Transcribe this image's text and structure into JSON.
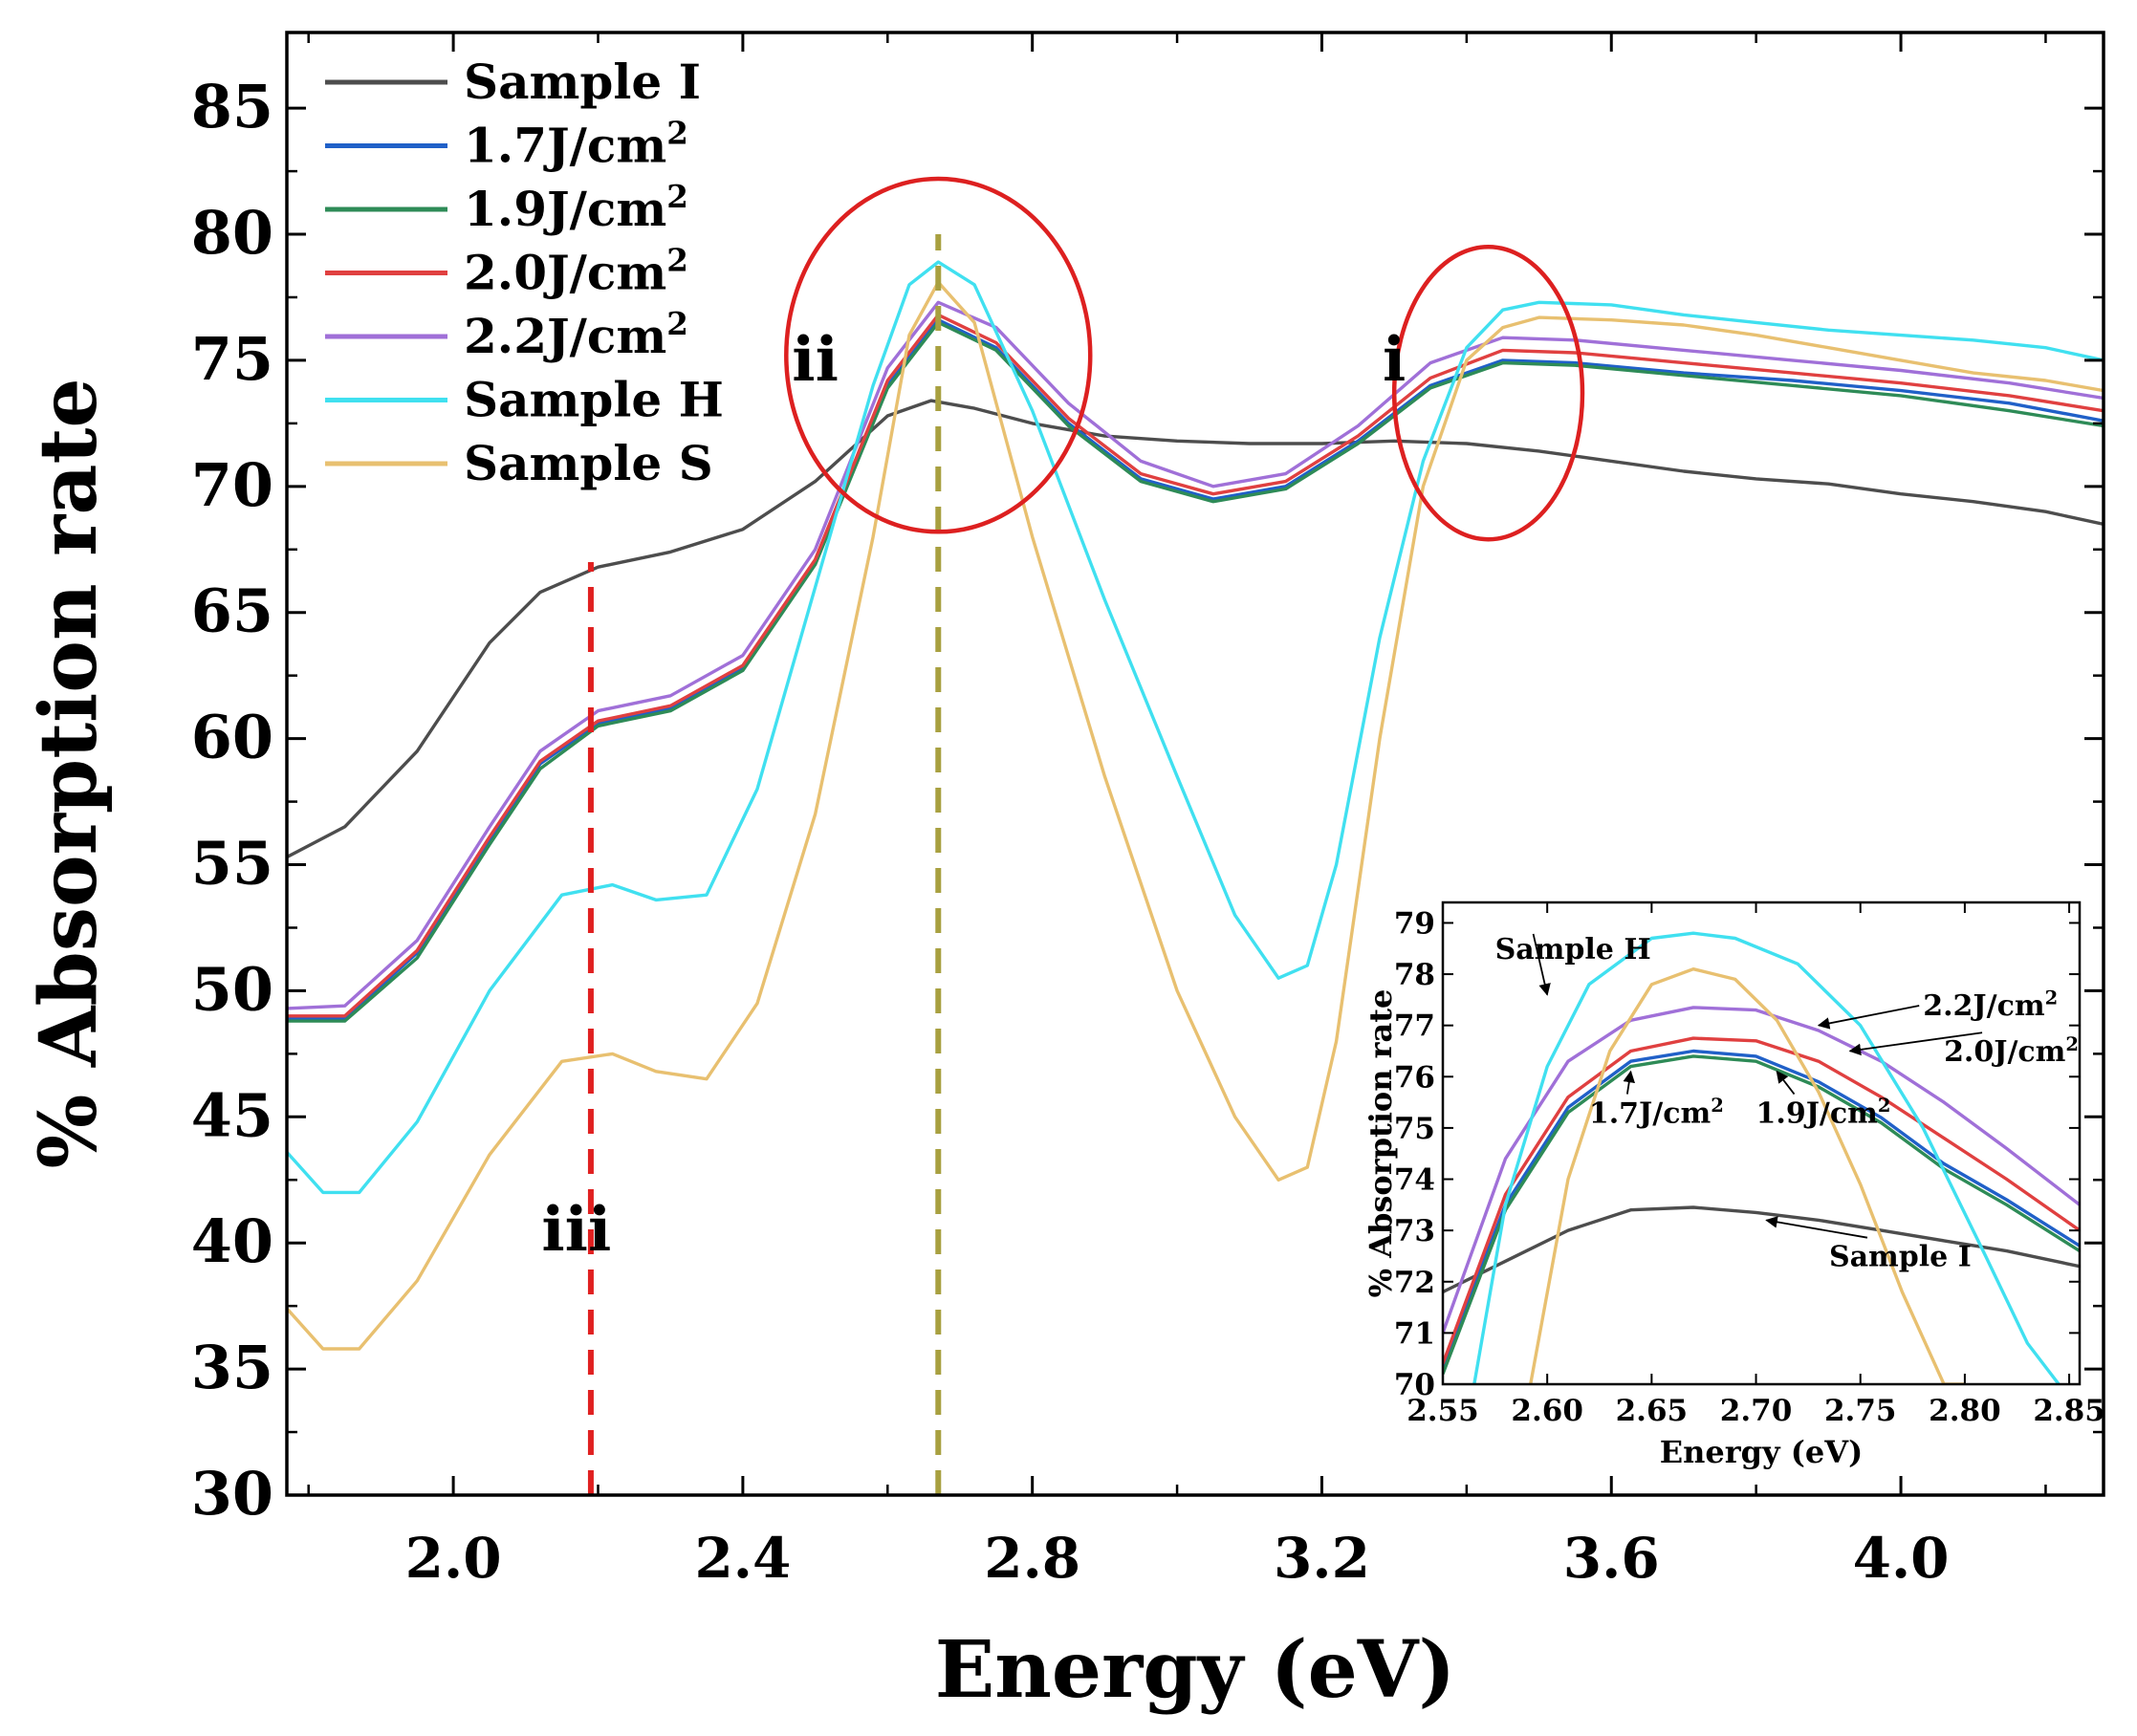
{
  "chart_data": [
    {
      "type": "line",
      "xlabel": "Energy (eV)",
      "ylabel": "% Absorption rate",
      "xlim": [
        1.77,
        4.28
      ],
      "ylim": [
        30,
        88
      ],
      "xticks": [
        2.0,
        2.4,
        2.8,
        3.2,
        3.6,
        4.0
      ],
      "xtick_labels": [
        "2.0",
        "2.4",
        "2.8",
        "3.2",
        "3.6",
        "4.0"
      ],
      "yticks": [
        30,
        35,
        40,
        45,
        50,
        55,
        60,
        65,
        70,
        75,
        80,
        85
      ],
      "ytick_labels": [
        "30",
        "35",
        "40",
        "45",
        "50",
        "55",
        "60",
        "65",
        "70",
        "75",
        "80",
        "85"
      ],
      "legend_position": "top-left",
      "series": [
        {
          "name": "Sample I",
          "color": "#4d4d4d",
          "x": [
            1.77,
            1.85,
            1.95,
            2.05,
            2.12,
            2.2,
            2.3,
            2.4,
            2.5,
            2.6,
            2.66,
            2.72,
            2.8,
            2.9,
            3.0,
            3.1,
            3.2,
            3.3,
            3.4,
            3.5,
            3.6,
            3.7,
            3.8,
            3.9,
            4.0,
            4.1,
            4.2,
            4.28
          ],
          "y": [
            55.3,
            56.5,
            59.5,
            63.8,
            65.8,
            66.8,
            67.4,
            68.3,
            70.2,
            72.8,
            73.4,
            73.1,
            72.5,
            72.0,
            71.8,
            71.7,
            71.7,
            71.8,
            71.7,
            71.4,
            71.0,
            70.6,
            70.3,
            70.1,
            69.7,
            69.4,
            69.0,
            68.5
          ]
        },
        {
          "name": "1.7J/cm",
          "sup": "2",
          "color": "#2060c8",
          "x": [
            1.77,
            1.85,
            1.95,
            2.05,
            2.12,
            2.2,
            2.3,
            2.4,
            2.5,
            2.6,
            2.67,
            2.75,
            2.85,
            2.95,
            3.05,
            3.15,
            3.25,
            3.35,
            3.45,
            3.55,
            3.7,
            3.85,
            4.0,
            4.15,
            4.28
          ],
          "y": [
            48.9,
            48.9,
            51.5,
            56.0,
            59.0,
            60.6,
            61.2,
            62.8,
            67.0,
            74.0,
            76.6,
            75.5,
            72.5,
            70.3,
            69.5,
            70.0,
            71.8,
            74.0,
            75.0,
            74.9,
            74.5,
            74.2,
            73.8,
            73.3,
            72.6
          ]
        },
        {
          "name": "1.9J/cm",
          "sup": "2",
          "color": "#2e8b57",
          "x": [
            1.77,
            1.85,
            1.95,
            2.05,
            2.12,
            2.2,
            2.3,
            2.4,
            2.5,
            2.6,
            2.67,
            2.75,
            2.85,
            2.95,
            3.05,
            3.15,
            3.25,
            3.35,
            3.45,
            3.55,
            3.7,
            3.85,
            4.0,
            4.15,
            4.28
          ],
          "y": [
            48.8,
            48.8,
            51.3,
            55.8,
            58.8,
            60.5,
            61.1,
            62.7,
            66.9,
            73.9,
            76.5,
            75.4,
            72.4,
            70.2,
            69.4,
            69.9,
            71.7,
            73.9,
            74.9,
            74.8,
            74.4,
            74.0,
            73.6,
            73.0,
            72.4
          ]
        },
        {
          "name": "2.0J/cm",
          "sup": "2",
          "color": "#e04040",
          "x": [
            1.77,
            1.85,
            1.95,
            2.05,
            2.12,
            2.2,
            2.3,
            2.4,
            2.5,
            2.6,
            2.67,
            2.75,
            2.85,
            2.95,
            3.05,
            3.15,
            3.25,
            3.35,
            3.45,
            3.55,
            3.7,
            3.85,
            4.0,
            4.15,
            4.28
          ],
          "y": [
            49.0,
            49.0,
            51.6,
            56.1,
            59.1,
            60.7,
            61.3,
            62.9,
            67.1,
            74.2,
            76.8,
            75.7,
            72.7,
            70.5,
            69.7,
            70.2,
            72.0,
            74.3,
            75.4,
            75.3,
            74.9,
            74.5,
            74.1,
            73.6,
            73.0
          ]
        },
        {
          "name": "2.2J/cm",
          "sup": "2",
          "color": "#a070d8",
          "x": [
            1.77,
            1.85,
            1.95,
            2.05,
            2.12,
            2.2,
            2.3,
            2.4,
            2.5,
            2.6,
            2.67,
            2.75,
            2.85,
            2.95,
            3.05,
            3.15,
            3.25,
            3.35,
            3.45,
            3.55,
            3.7,
            3.85,
            4.0,
            4.15,
            4.28
          ],
          "y": [
            49.3,
            49.4,
            52.0,
            56.5,
            59.5,
            61.1,
            61.7,
            63.3,
            67.5,
            74.7,
            77.3,
            76.3,
            73.3,
            71.0,
            70.0,
            70.5,
            72.4,
            74.9,
            75.9,
            75.8,
            75.4,
            75.0,
            74.6,
            74.1,
            73.5
          ]
        },
        {
          "name": "Sample H",
          "color": "#40e0f0",
          "x": [
            1.77,
            1.82,
            1.87,
            1.95,
            2.05,
            2.15,
            2.22,
            2.28,
            2.35,
            2.42,
            2.5,
            2.58,
            2.63,
            2.67,
            2.72,
            2.8,
            2.9,
            3.0,
            3.08,
            3.14,
            3.18,
            3.22,
            3.28,
            3.34,
            3.4,
            3.45,
            3.5,
            3.6,
            3.7,
            3.8,
            3.9,
            4.0,
            4.1,
            4.2,
            4.28
          ],
          "y": [
            43.6,
            42.0,
            42.0,
            44.8,
            50.0,
            53.8,
            54.2,
            53.6,
            53.8,
            58.0,
            66.0,
            74.0,
            78.0,
            78.9,
            78.0,
            73.0,
            65.5,
            58.5,
            53.0,
            50.5,
            51.0,
            55.0,
            64.0,
            71.0,
            75.5,
            77.0,
            77.3,
            77.2,
            76.8,
            76.5,
            76.2,
            76.0,
            75.8,
            75.5,
            75.0
          ]
        },
        {
          "name": "Sample S",
          "color": "#e8c070",
          "x": [
            1.77,
            1.82,
            1.87,
            1.95,
            2.05,
            2.15,
            2.22,
            2.28,
            2.35,
            2.42,
            2.5,
            2.58,
            2.63,
            2.67,
            2.72,
            2.8,
            2.9,
            3.0,
            3.08,
            3.14,
            3.18,
            3.22,
            3.28,
            3.34,
            3.4,
            3.45,
            3.5,
            3.6,
            3.7,
            3.8,
            3.9,
            4.0,
            4.1,
            4.2,
            4.28
          ],
          "y": [
            37.4,
            35.8,
            35.8,
            38.5,
            43.5,
            47.2,
            47.5,
            46.8,
            46.5,
            49.5,
            57.0,
            68.0,
            76.0,
            78.1,
            76.5,
            68.0,
            58.5,
            50.0,
            45.0,
            42.5,
            43.0,
            48.0,
            60.0,
            70.0,
            75.0,
            76.3,
            76.7,
            76.6,
            76.4,
            76.0,
            75.5,
            75.0,
            74.5,
            74.2,
            73.8
          ]
        }
      ],
      "annotations": [
        {
          "text": "i",
          "x": 3.3,
          "y": 74.2
        },
        {
          "text": "ii",
          "x": 2.5,
          "y": 74.2
        },
        {
          "text": "iii",
          "x": 2.17,
          "y": 39.7
        }
      ],
      "markers": {
        "vlines": [
          {
            "x": 2.19,
            "y_from": 30,
            "y_to": 67,
            "color": "#e02020"
          },
          {
            "x": 2.67,
            "y_from": 30,
            "y_to": 80,
            "color": "#a8a040"
          }
        ],
        "circles": [
          {
            "cx": 2.67,
            "cy": 75.2,
            "rx": 0.21,
            "ry": 7.0
          },
          {
            "cx": 3.43,
            "cy": 73.7,
            "rx": 0.13,
            "ry": 5.8
          }
        ],
        "circle_color": "#dd2020"
      }
    },
    {
      "type": "line",
      "inset": true,
      "xlabel": "Energy (eV)",
      "ylabel": "% Absorption rate",
      "xlim": [
        2.55,
        2.855
      ],
      "ylim": [
        70,
        79.4
      ],
      "xticks": [
        2.55,
        2.6,
        2.65,
        2.7,
        2.75,
        2.8,
        2.85
      ],
      "xtick_labels": [
        "2.55",
        "2.60",
        "2.65",
        "2.70",
        "2.75",
        "2.80",
        "2.85"
      ],
      "yticks": [
        70,
        71,
        72,
        73,
        74,
        75,
        76,
        77,
        78,
        79
      ],
      "ytick_labels": [
        "70",
        "71",
        "72",
        "73",
        "74",
        "75",
        "76",
        "77",
        "78",
        "79"
      ],
      "series": [
        {
          "name": "Sample I",
          "color": "#4d4d4d",
          "x": [
            2.55,
            2.58,
            2.61,
            2.64,
            2.67,
            2.7,
            2.73,
            2.76,
            2.79,
            2.82,
            2.855
          ],
          "y": [
            71.8,
            72.4,
            73.0,
            73.4,
            73.45,
            73.35,
            73.2,
            73.0,
            72.8,
            72.6,
            72.3
          ]
        },
        {
          "name": "1.7J/cm",
          "sup": "2",
          "color": "#2060c8",
          "x": [
            2.55,
            2.58,
            2.61,
            2.64,
            2.67,
            2.7,
            2.73,
            2.76,
            2.79,
            2.82,
            2.855
          ],
          "y": [
            70.3,
            73.5,
            75.4,
            76.3,
            76.5,
            76.4,
            75.9,
            75.2,
            74.3,
            73.6,
            72.7
          ]
        },
        {
          "name": "1.9J/cm",
          "sup": "2",
          "color": "#2e8b57",
          "x": [
            2.55,
            2.58,
            2.61,
            2.64,
            2.67,
            2.7,
            2.73,
            2.76,
            2.79,
            2.82,
            2.855
          ],
          "y": [
            70.2,
            73.4,
            75.3,
            76.2,
            76.4,
            76.3,
            75.8,
            75.1,
            74.2,
            73.5,
            72.6
          ]
        },
        {
          "name": "2.0J/cm",
          "sup": "2",
          "color": "#e04040",
          "x": [
            2.55,
            2.58,
            2.61,
            2.64,
            2.67,
            2.7,
            2.73,
            2.76,
            2.79,
            2.82,
            2.855
          ],
          "y": [
            70.4,
            73.7,
            75.6,
            76.5,
            76.75,
            76.7,
            76.3,
            75.6,
            74.8,
            74.0,
            73.0
          ]
        },
        {
          "name": "2.2J/cm",
          "sup": "2",
          "color": "#a070d8",
          "x": [
            2.55,
            2.58,
            2.61,
            2.64,
            2.67,
            2.7,
            2.73,
            2.76,
            2.79,
            2.82,
            2.855
          ],
          "y": [
            71.0,
            74.4,
            76.3,
            77.1,
            77.35,
            77.3,
            76.9,
            76.3,
            75.5,
            74.6,
            73.5
          ]
        },
        {
          "name": "Sample H",
          "color": "#40e0f0",
          "x": [
            2.565,
            2.58,
            2.6,
            2.62,
            2.65,
            2.67,
            2.69,
            2.72,
            2.75,
            2.78,
            2.81,
            2.83,
            2.845
          ],
          "y": [
            70.0,
            73.5,
            76.2,
            77.8,
            78.7,
            78.8,
            78.7,
            78.2,
            77.0,
            75.0,
            72.5,
            70.8,
            70.0
          ]
        },
        {
          "name": "Sample S",
          "color": "#e8c070",
          "x": [
            2.592,
            2.61,
            2.63,
            2.65,
            2.67,
            2.69,
            2.71,
            2.73,
            2.75,
            2.77,
            2.79,
            2.8
          ],
          "y": [
            70.0,
            74.0,
            76.5,
            77.8,
            78.1,
            77.9,
            77.1,
            75.7,
            73.9,
            71.8,
            70.0,
            70.0
          ]
        }
      ],
      "labels": [
        {
          "text": "Sample H",
          "tx": 2.575,
          "ty": 78.3,
          "ax": 2.6,
          "ay": 77.6
        },
        {
          "text": "2.2J/cm",
          "sup": "2",
          "tx": 2.78,
          "ty": 77.2,
          "ax": 2.73,
          "ay": 77.0
        },
        {
          "text": "2.0J/cm",
          "sup": "2",
          "tx": 2.79,
          "ty": 76.3,
          "ax": 2.745,
          "ay": 76.5
        },
        {
          "text": "1.7J/cm",
          "sup": "2",
          "tx": 2.62,
          "ty": 75.1,
          "ax": 2.64,
          "ay": 76.1
        },
        {
          "text": "1.9J/cm",
          "sup": "2",
          "tx": 2.7,
          "ty": 75.1,
          "ax": 2.71,
          "ay": 76.1
        },
        {
          "text": "Sample I",
          "tx": 2.735,
          "ty": 72.3,
          "ax": 2.705,
          "ay": 73.2
        }
      ]
    }
  ]
}
